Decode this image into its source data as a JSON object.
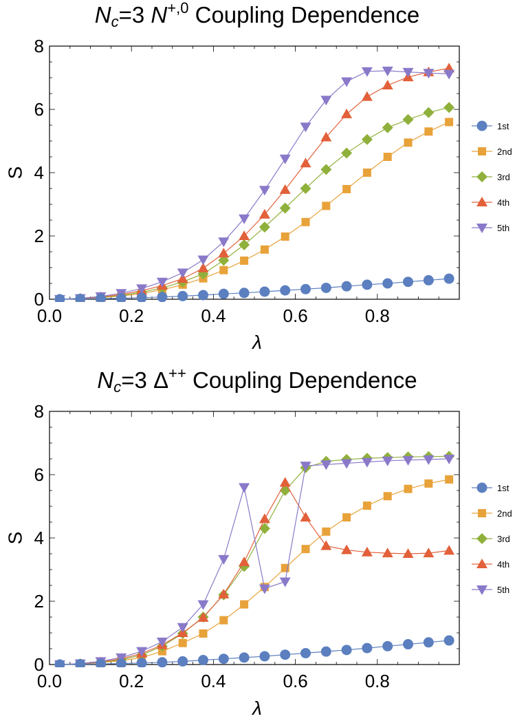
{
  "chart_data": [
    {
      "type": "line",
      "title_parts": {
        "main": "N",
        "sub": "c",
        "eq": "=3 ",
        "particle": "N",
        "sup": "+,0",
        "rest": " Coupling Dependence"
      },
      "xlabel": "λ",
      "ylabel": "S",
      "xlim": [
        0.0,
        1.0
      ],
      "ylim": [
        0,
        8
      ],
      "xticks": [
        "0.0",
        "0.2",
        "0.4",
        "0.6",
        "0.8"
      ],
      "xtick_values": [
        0.0,
        0.2,
        0.4,
        0.6,
        0.8
      ],
      "yticks": [
        "0",
        "2",
        "4",
        "6",
        "8"
      ],
      "ytick_values": [
        0,
        2,
        4,
        6,
        8
      ],
      "legend_placement": "right",
      "x": [
        0.025,
        0.075,
        0.125,
        0.175,
        0.225,
        0.275,
        0.325,
        0.375,
        0.425,
        0.475,
        0.525,
        0.575,
        0.625,
        0.675,
        0.725,
        0.775,
        0.825,
        0.875,
        0.925,
        0.975
      ],
      "series": [
        {
          "name": "1st",
          "marker": "circle",
          "color": "#5b7fbf",
          "values": [
            0.0,
            0.01,
            0.02,
            0.03,
            0.05,
            0.07,
            0.1,
            0.13,
            0.17,
            0.2,
            0.24,
            0.28,
            0.32,
            0.36,
            0.41,
            0.46,
            0.5,
            0.55,
            0.6,
            0.65
          ]
        },
        {
          "name": "2nd",
          "marker": "square",
          "color": "#e8a23a",
          "values": [
            0.0,
            0.02,
            0.05,
            0.1,
            0.18,
            0.3,
            0.46,
            0.66,
            0.92,
            1.22,
            1.57,
            1.98,
            2.44,
            2.95,
            3.48,
            4.0,
            4.5,
            4.95,
            5.3,
            5.6
          ]
        },
        {
          "name": "3rd",
          "marker": "diamond",
          "color": "#8fb03b",
          "values": [
            0.0,
            0.02,
            0.06,
            0.12,
            0.22,
            0.36,
            0.55,
            0.8,
            1.23,
            1.72,
            2.28,
            2.88,
            3.5,
            4.1,
            4.62,
            5.05,
            5.42,
            5.68,
            5.9,
            6.06
          ]
        },
        {
          "name": "4th",
          "marker": "triangle-up",
          "color": "#e2603a",
          "values": [
            0.0,
            0.02,
            0.07,
            0.15,
            0.27,
            0.43,
            0.65,
            0.98,
            1.45,
            2.0,
            2.68,
            3.46,
            4.3,
            5.12,
            5.85,
            6.4,
            6.76,
            7.02,
            7.18,
            7.3
          ]
        },
        {
          "name": "5th",
          "marker": "triangle-down",
          "color": "#8a79c9",
          "values": [
            0.0,
            0.03,
            0.09,
            0.19,
            0.34,
            0.55,
            0.84,
            1.25,
            1.82,
            2.55,
            3.45,
            4.44,
            5.45,
            6.3,
            6.88,
            7.2,
            7.22,
            7.18,
            7.15,
            7.12
          ]
        }
      ]
    },
    {
      "type": "line",
      "title_parts": {
        "main": "N",
        "sub": "c",
        "eq": "=3 ",
        "particle": "Δ",
        "sup": "++",
        "rest": " Coupling Dependence"
      },
      "xlabel": "λ",
      "ylabel": "S",
      "xlim": [
        0.0,
        1.0
      ],
      "ylim": [
        0,
        8
      ],
      "xticks": [
        "0.0",
        "0.2",
        "0.4",
        "0.6",
        "0.8"
      ],
      "xtick_values": [
        0.0,
        0.2,
        0.4,
        0.6,
        0.8
      ],
      "yticks": [
        "0",
        "2",
        "4",
        "6",
        "8"
      ],
      "ytick_values": [
        0,
        2,
        4,
        6,
        8
      ],
      "legend_placement": "right",
      "x": [
        0.025,
        0.075,
        0.125,
        0.175,
        0.225,
        0.275,
        0.325,
        0.375,
        0.425,
        0.475,
        0.525,
        0.575,
        0.625,
        0.675,
        0.725,
        0.775,
        0.825,
        0.875,
        0.925,
        0.975
      ],
      "series": [
        {
          "name": "1st",
          "marker": "circle",
          "color": "#5b7fbf",
          "values": [
            0.0,
            0.01,
            0.02,
            0.03,
            0.05,
            0.07,
            0.1,
            0.14,
            0.18,
            0.22,
            0.26,
            0.31,
            0.36,
            0.41,
            0.46,
            0.52,
            0.58,
            0.64,
            0.7,
            0.76
          ]
        },
        {
          "name": "2nd",
          "marker": "square",
          "color": "#e8a23a",
          "values": [
            0.0,
            0.02,
            0.06,
            0.12,
            0.22,
            0.42,
            0.68,
            0.98,
            1.4,
            1.9,
            2.45,
            3.05,
            3.65,
            4.2,
            4.65,
            5.02,
            5.32,
            5.55,
            5.72,
            5.85
          ]
        },
        {
          "name": "3rd",
          "marker": "diamond",
          "color": "#8fb03b",
          "values": [
            0.0,
            0.02,
            0.07,
            0.15,
            0.3,
            0.58,
            0.98,
            1.5,
            2.2,
            3.1,
            4.3,
            5.5,
            6.22,
            6.42,
            6.48,
            6.52,
            6.54,
            6.56,
            6.57,
            6.58
          ]
        },
        {
          "name": "4th",
          "marker": "triangle-up",
          "color": "#e2603a",
          "values": [
            0.0,
            0.02,
            0.08,
            0.18,
            0.35,
            0.62,
            1.0,
            1.48,
            2.22,
            3.24,
            4.6,
            5.75,
            4.65,
            3.75,
            3.62,
            3.55,
            3.52,
            3.5,
            3.52,
            3.6
          ]
        },
        {
          "name": "5th",
          "marker": "triangle-down",
          "color": "#8a79c9",
          "values": [
            0.0,
            0.03,
            0.1,
            0.22,
            0.42,
            0.72,
            1.18,
            1.9,
            3.33,
            5.6,
            2.4,
            2.62,
            6.28,
            6.32,
            6.36,
            6.4,
            6.44,
            6.46,
            6.48,
            6.5
          ]
        }
      ]
    }
  ]
}
